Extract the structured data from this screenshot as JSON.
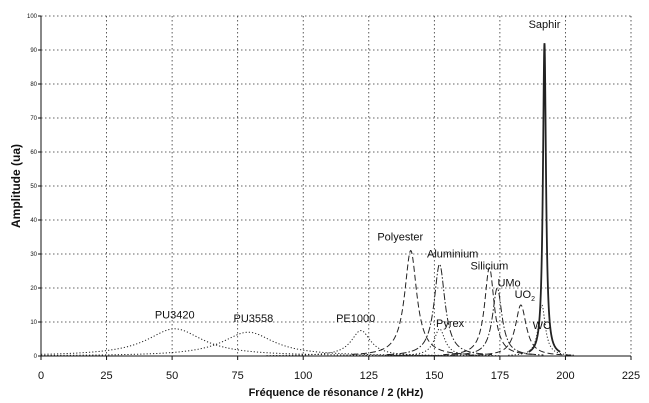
{
  "chart_data": {
    "type": "line",
    "title": "",
    "xlabel": "Fréquence de résonance / 2 (kHz)",
    "ylabel": "Amplitude (ua)",
    "xlim": [
      0,
      225
    ],
    "ylim": [
      0,
      100
    ],
    "xticks": [
      "0",
      "25",
      "50",
      "75",
      "100",
      "125",
      "150",
      "175",
      "200",
      "225"
    ],
    "yticks": [
      "0",
      "10",
      "20",
      "30",
      "40",
      "50",
      "60",
      "70",
      "80",
      "90",
      "100"
    ],
    "grid": "dotted",
    "legend": "none",
    "series": [
      {
        "name": "PU3420",
        "peak_x": 51,
        "peak_y": 8,
        "width": 13,
        "style": "dotted"
      },
      {
        "name": "PU3558",
        "peak_x": 79,
        "peak_y": 7,
        "width": 12,
        "style": "dotted"
      },
      {
        "name": "PE1000",
        "peak_x": 122,
        "peak_y": 7.5,
        "width": 4.5,
        "style": "dotted"
      },
      {
        "name": "Polyester",
        "peak_x": 141,
        "peak_y": 31,
        "width": 2.8,
        "style": "dashed"
      },
      {
        "name": "Pyrex",
        "peak_x": 152,
        "peak_y": 8,
        "width": 2.5,
        "style": "dotted"
      },
      {
        "name": "Aluminium",
        "peak_x": 152,
        "peak_y": 27,
        "width": 2.5,
        "style": "dash-dot"
      },
      {
        "name": "Silicium",
        "peak_x": 171,
        "peak_y": 26,
        "width": 2.2,
        "style": "dashed"
      },
      {
        "name": "UMo",
        "peak_x": 174,
        "peak_y": 20,
        "width": 2.2,
        "style": "dash-dot"
      },
      {
        "name": "UO2",
        "peak_x": 183,
        "peak_y": 15,
        "width": 2.5,
        "style": "dashed"
      },
      {
        "name": "WC",
        "peak_x": 191,
        "peak_y": 15,
        "width": 1.6,
        "style": "dotted"
      },
      {
        "name": "Saphir",
        "peak_x": 192,
        "peak_y": 92,
        "width": 0.7,
        "style": "solid"
      }
    ],
    "annotations": [
      {
        "text": "PU3420",
        "x": 51,
        "y": 11
      },
      {
        "text": "PU3558",
        "x": 81,
        "y": 10
      },
      {
        "text": "PE1000",
        "x": 120,
        "y": 10
      },
      {
        "text": "Polyester",
        "x": 137,
        "y": 34
      },
      {
        "text": "Aluminium",
        "x": 157,
        "y": 29
      },
      {
        "text": "Silicium",
        "x": 171,
        "y": 25.5
      },
      {
        "text": "UMo",
        "x": 178.5,
        "y": 20.5
      },
      {
        "text": "Pyrex",
        "x": 156,
        "y": 8.5
      },
      {
        "text": "UO2",
        "x": 184.5,
        "y": 17
      },
      {
        "text": "WC",
        "x": 191,
        "y": 8
      },
      {
        "text": "Saphir",
        "x": 192,
        "y": 96.5
      }
    ],
    "colors": {
      "line": "#222222",
      "grid": "#333333",
      "text": "#111111"
    }
  }
}
